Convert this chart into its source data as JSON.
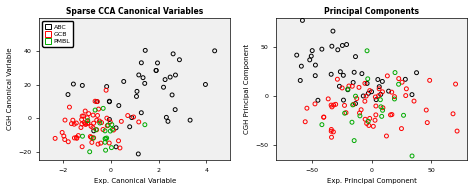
{
  "title1": "Sparse CCA Canonical Variables",
  "title2": "Principal Components",
  "xlabel1": "Exp. Canonical Variable",
  "ylabel1": "CGH Canonical Variable",
  "xlabel2": "Exp. Principal Component",
  "ylabel2": "CGH Principal Component",
  "xlim1": [
    -3,
    5
  ],
  "ylim1": [
    -25,
    60
  ],
  "xlim2": [
    -80,
    80
  ],
  "ylim2": [
    -65,
    80
  ],
  "xticks1": [
    -2,
    0,
    2,
    4
  ],
  "yticks1": [
    -20,
    0,
    20,
    40
  ],
  "xticks2": [
    -50,
    0,
    50
  ],
  "yticks2": [
    -50,
    0,
    50
  ],
  "colors": {
    "ABC": "#000000",
    "GCB": "#ff0000",
    "PMBL": "#00aa00"
  },
  "legend_labels": [
    "ABC",
    "GCB",
    "PMBL"
  ],
  "background": "#f0f0f0",
  "seed": 42,
  "n_ABC": 40,
  "n_GCB": 60,
  "n_PMBL": 20
}
